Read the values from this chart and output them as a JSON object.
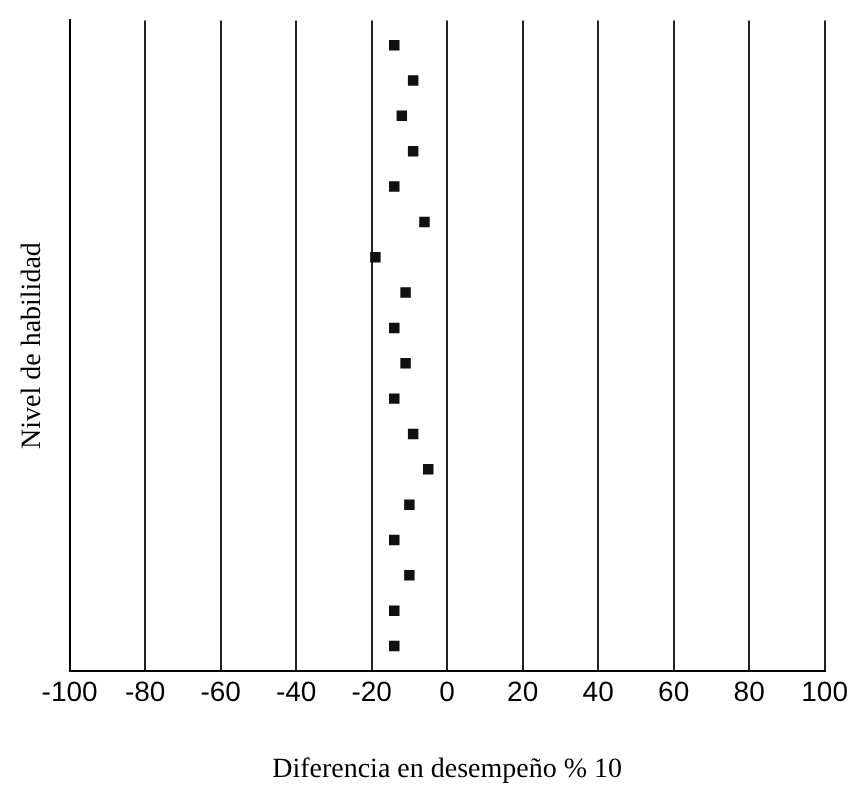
{
  "chart_data": {
    "type": "scatter",
    "orientation": "horizontal",
    "xlabel": "Diferencia en desempeño % 10",
    "ylabel": "Nivel de habilidad",
    "categories": [
      null,
      null,
      null,
      null,
      null,
      null,
      null,
      null,
      null,
      null,
      null,
      null,
      null,
      null,
      null,
      null,
      null,
      null
    ],
    "series": [
      {
        "color": "#111111",
        "values": [
          -14,
          -9,
          -12,
          -9,
          -14,
          -6,
          -19,
          -11,
          -14,
          -11,
          -14,
          -9,
          -5,
          -10,
          -14,
          -10,
          -14,
          -14
        ]
      }
    ],
    "xlim": [
      -100,
      100
    ],
    "xticks": [
      -100,
      -80,
      -60,
      -40,
      -20,
      0,
      20,
      40,
      60,
      80,
      100
    ],
    "grid": "x",
    "marker": "square",
    "legend": false
  }
}
